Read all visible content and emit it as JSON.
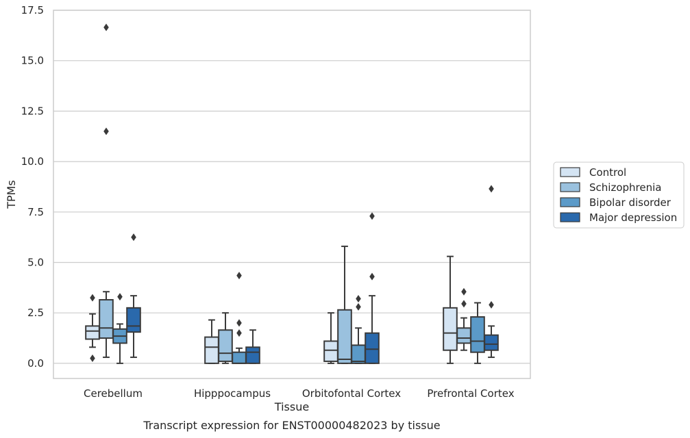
{
  "chart_data": {
    "type": "boxplot",
    "title": "",
    "caption": "Transcript expression for ENST00000482023 by tissue",
    "xlabel": "Tissue",
    "ylabel": "TPMs",
    "ylim": [
      -0.75,
      17.5
    ],
    "yticks": [
      "0.0",
      "2.5",
      "5.0",
      "7.5",
      "10.0",
      "12.5",
      "15.0",
      "17.5"
    ],
    "ytick_values": [
      0,
      2.5,
      5,
      7.5,
      10,
      12.5,
      15,
      17.5
    ],
    "grid": "horizontal",
    "legend_position": "right",
    "categories": [
      "Cerebellum",
      "Hipppocampus",
      "Orbitofontal Cortex",
      "Prefrontal Cortex"
    ],
    "series": [
      {
        "name": "Control",
        "color": "#d4e4f3",
        "boxes": [
          {
            "whisker_low": 0.8,
            "q1": 1.2,
            "median": 1.6,
            "q3": 1.85,
            "whisker_high": 2.45,
            "outliers": [
              3.25,
              0.25
            ]
          },
          {
            "whisker_low": 0.0,
            "q1": 0.0,
            "median": 0.8,
            "q3": 1.3,
            "whisker_high": 2.15,
            "outliers": []
          },
          {
            "whisker_low": 0.0,
            "q1": 0.1,
            "median": 0.65,
            "q3": 1.1,
            "whisker_high": 2.5,
            "outliers": []
          },
          {
            "whisker_low": 0.0,
            "q1": 0.65,
            "median": 1.5,
            "q3": 2.75,
            "whisker_high": 5.3,
            "outliers": []
          }
        ]
      },
      {
        "name": "Schizophrenia",
        "color": "#9ac1de",
        "boxes": [
          {
            "whisker_low": 0.3,
            "q1": 1.25,
            "median": 1.75,
            "q3": 3.15,
            "whisker_high": 3.55,
            "outliers": [
              11.5,
              16.65
            ]
          },
          {
            "whisker_low": 0.0,
            "q1": 0.1,
            "median": 0.5,
            "q3": 1.65,
            "whisker_high": 2.5,
            "outliers": []
          },
          {
            "whisker_low": 0.0,
            "q1": 0.0,
            "median": 0.2,
            "q3": 2.65,
            "whisker_high": 5.8,
            "outliers": []
          },
          {
            "whisker_low": 0.65,
            "q1": 1.0,
            "median": 1.25,
            "q3": 1.75,
            "whisker_high": 2.25,
            "outliers": [
              2.95,
              3.55
            ]
          }
        ]
      },
      {
        "name": "Bipolar disorder",
        "color": "#5b9ac8",
        "boxes": [
          {
            "whisker_low": 0.0,
            "q1": 1.0,
            "median": 1.35,
            "q3": 1.7,
            "whisker_high": 1.95,
            "outliers": [
              3.3
            ]
          },
          {
            "whisker_low": 0.0,
            "q1": 0.0,
            "median": 0.0,
            "q3": 0.55,
            "whisker_high": 0.75,
            "outliers": [
              1.5,
              2.0,
              4.35
            ]
          },
          {
            "whisker_low": 0.0,
            "q1": 0.0,
            "median": 0.1,
            "q3": 0.9,
            "whisker_high": 1.75,
            "outliers": [
              2.8,
              3.2
            ]
          },
          {
            "whisker_low": 0.0,
            "q1": 0.55,
            "median": 1.1,
            "q3": 2.3,
            "whisker_high": 3.0,
            "outliers": []
          }
        ]
      },
      {
        "name": "Major depression",
        "color": "#2a69ac",
        "boxes": [
          {
            "whisker_low": 0.3,
            "q1": 1.55,
            "median": 1.85,
            "q3": 2.75,
            "whisker_high": 3.35,
            "outliers": [
              6.25
            ]
          },
          {
            "whisker_low": 0.0,
            "q1": 0.0,
            "median": 0.55,
            "q3": 0.8,
            "whisker_high": 1.65,
            "outliers": []
          },
          {
            "whisker_low": 0.0,
            "q1": 0.0,
            "median": 0.7,
            "q3": 1.5,
            "whisker_high": 3.35,
            "outliers": [
              4.3,
              7.3
            ]
          },
          {
            "whisker_low": 0.3,
            "q1": 0.65,
            "median": 0.95,
            "q3": 1.4,
            "whisker_high": 1.85,
            "outliers": [
              2.9,
              8.65
            ]
          }
        ]
      }
    ]
  }
}
